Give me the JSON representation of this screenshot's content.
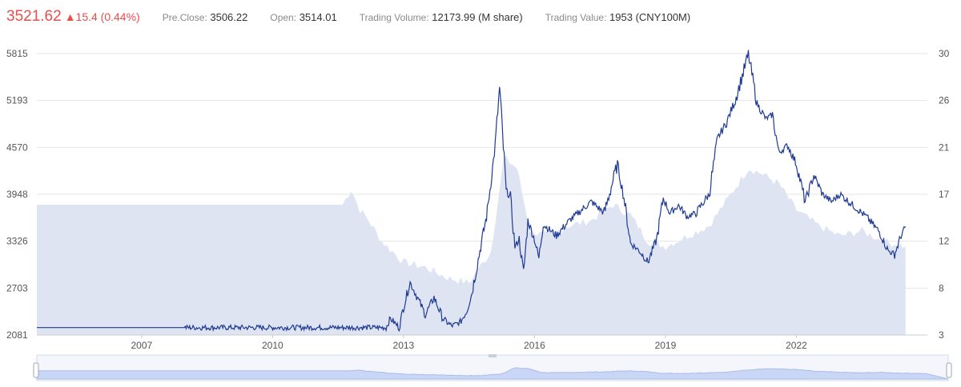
{
  "header": {
    "price": "3521.62",
    "change": "▲15.4 (0.44%)",
    "stats": [
      {
        "label": "Pre.Close:",
        "value": "3506.22"
      },
      {
        "label": "Open:",
        "value": "3514.01"
      },
      {
        "label": "Trading Volume:",
        "value": "12173.99 (M share)"
      },
      {
        "label": "Trading Value:",
        "value": "1953 (CNY100M)"
      }
    ]
  },
  "colors": {
    "up": "#e84e4e",
    "line": "#1f3a93",
    "area": "#dfe4f2",
    "grid": "#e5e5e5",
    "slider_fill": "#c9d6f5"
  },
  "chart_data": {
    "type": "line",
    "title": "",
    "xlabel": "",
    "ylabel": "",
    "x_ticks": [
      "2007",
      "2010",
      "2013",
      "2016",
      "2019",
      "2022"
    ],
    "y_left_ticks": [
      "2081",
      "2703",
      "3326",
      "3948",
      "4570",
      "5193",
      "5815"
    ],
    "y_right_ticks": [
      "3",
      "8",
      "12",
      "17",
      "21",
      "26",
      "30"
    ],
    "ylim_left": [
      2081,
      5815
    ],
    "ylim_right": [
      3,
      30
    ],
    "xlim": [
      2004.6,
      2025.0
    ],
    "grid": true,
    "legend": "none",
    "series": [
      {
        "axis": "left",
        "style": "line",
        "x": [
          2004.6,
          2008.0,
          2011.0,
          2012.6,
          2012.7,
          2012.9,
          2013.0,
          2013.15,
          2013.3,
          2013.5,
          2013.7,
          2013.9,
          2014.1,
          2014.3,
          2014.45,
          2014.55,
          2014.75,
          2014.9,
          2015.0,
          2015.1,
          2015.2,
          2015.35,
          2015.45,
          2015.55,
          2015.65,
          2015.75,
          2015.85,
          2016.0,
          2016.1,
          2016.2,
          2016.5,
          2016.8,
          2017.0,
          2017.3,
          2017.6,
          2017.9,
          2018.05,
          2018.2,
          2018.4,
          2018.6,
          2018.8,
          2018.95,
          2019.1,
          2019.3,
          2019.5,
          2019.7,
          2020.0,
          2020.2,
          2020.4,
          2020.6,
          2020.9,
          2021.1,
          2021.3,
          2021.45,
          2021.6,
          2021.8,
          2022.0,
          2022.2,
          2022.4,
          2022.6,
          2022.8,
          2023.0,
          2023.3,
          2023.6,
          2023.9,
          2024.1,
          2024.25,
          2024.4,
          2024.5
        ],
        "y": [
          2180,
          2180,
          2180,
          2180,
          2300,
          2180,
          2450,
          2780,
          2600,
          2350,
          2580,
          2300,
          2200,
          2250,
          2400,
          2600,
          3200,
          3650,
          4100,
          4600,
          5350,
          4000,
          3900,
          3250,
          3350,
          2900,
          3600,
          3350,
          3100,
          3550,
          3400,
          3600,
          3700,
          3850,
          3700,
          4350,
          3900,
          3300,
          3200,
          3050,
          3350,
          3900,
          3700,
          3800,
          3650,
          3700,
          3950,
          4700,
          4900,
          5200,
          5800,
          5150,
          4950,
          5000,
          4500,
          4600,
          4350,
          3850,
          4200,
          3950,
          3850,
          3950,
          3800,
          3650,
          3450,
          3200,
          3150,
          3400,
          3520
        ]
      },
      {
        "axis": "right",
        "style": "area",
        "x": [
          2004.6,
          2011.6,
          2011.8,
          2012.0,
          2012.2,
          2012.5,
          2013.0,
          2013.5,
          2014.0,
          2014.5,
          2015.0,
          2015.3,
          2015.6,
          2015.9,
          2016.3,
          2016.8,
          2017.3,
          2017.8,
          2018.2,
          2018.6,
          2019.0,
          2019.5,
          2020.0,
          2020.5,
          2020.9,
          2021.2,
          2021.6,
          2022.0,
          2022.5,
          2023.0,
          2023.5,
          2024.0,
          2024.5
        ],
        "y": [
          15.5,
          15.5,
          17.0,
          15.0,
          14.0,
          12.0,
          10.0,
          9.5,
          8.5,
          8.0,
          11.0,
          20.0,
          19.0,
          13.0,
          12.5,
          13.5,
          14.0,
          15.5,
          14.5,
          12.0,
          11.5,
          12.5,
          13.5,
          16.5,
          19.0,
          18.5,
          17.5,
          15.0,
          13.5,
          12.5,
          13.0,
          12.0,
          11.5
        ]
      }
    ]
  }
}
